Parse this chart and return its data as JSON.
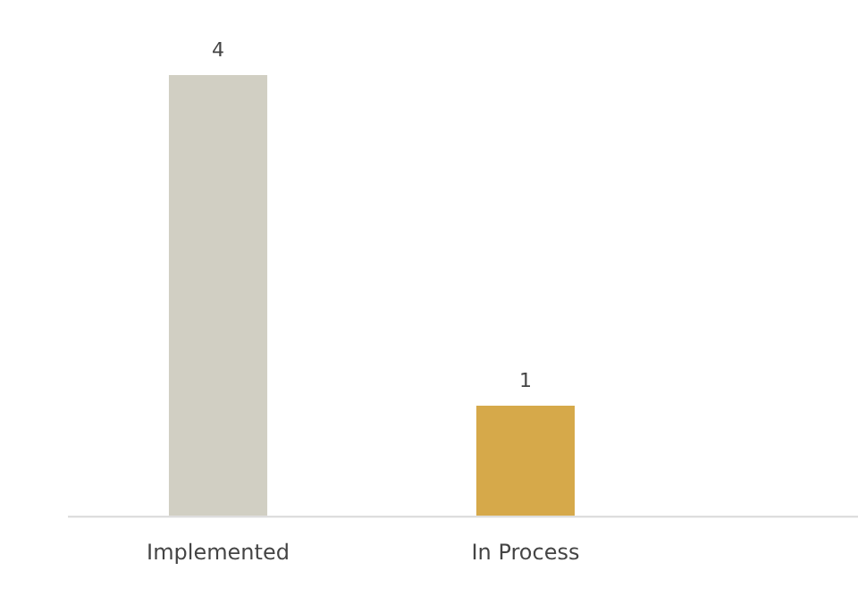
{
  "chart_data": {
    "type": "bar",
    "categories": [
      "Implemented",
      "In Process"
    ],
    "values": [
      4,
      1
    ],
    "colors": [
      "#d1cfc3",
      "#d6a94a"
    ],
    "data_labels": true,
    "grid": false,
    "legend": false,
    "tick_labels": "x"
  }
}
